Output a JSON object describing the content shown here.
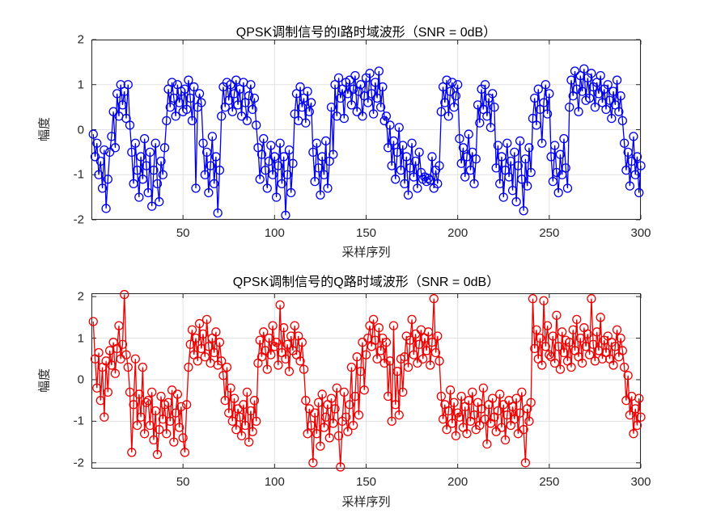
{
  "style": {
    "background": "#ffffff",
    "axis_color": "#262626",
    "grid_color": "#e2e2e2",
    "tick_label_color": "#262626",
    "title_color": "#000000"
  },
  "chart_data": [
    {
      "type": "line",
      "title": "QPSK调制信号的I路时域波形（SNR = 0dB）",
      "xlabel": "采样序列",
      "ylabel": "幅度",
      "line_color": "#0000ee",
      "marker": "circle",
      "grid": true,
      "x_start": 1,
      "xlim": [
        0,
        300
      ],
      "ylim": [
        -2,
        2
      ],
      "xticks": [
        50,
        100,
        150,
        200,
        250,
        300
      ],
      "yticks": [
        2,
        1,
        0,
        -1,
        -2
      ],
      "values": [
        -0.1,
        -0.6,
        -0.3,
        -1.0,
        -0.7,
        -1.3,
        -0.45,
        -1.75,
        -1.1,
        -0.5,
        -0.15,
        0.4,
        -0.4,
        0.8,
        0.3,
        1.0,
        0.55,
        0.85,
        0.25,
        1.0,
        0.1,
        -0.5,
        -1.2,
        -0.3,
        -0.9,
        -1.5,
        -0.6,
        -1.1,
        -0.2,
        -0.8,
        -1.4,
        -0.5,
        -1.7,
        -0.9,
        -0.3,
        -1.2,
        -1.6,
        -0.7,
        -1.0,
        -0.4,
        0.2,
        0.9,
        0.5,
        1.05,
        0.7,
        0.3,
        1.0,
        0.6,
        0.85,
        0.4,
        0.9,
        0.45,
        1.1,
        0.7,
        0.2,
        0.95,
        -1.3,
        0.5,
        0.8,
        0.6,
        -0.3,
        -1.0,
        -0.5,
        -1.4,
        -0.8,
        -0.15,
        -1.2,
        -0.6,
        -1.85,
        -0.9,
        0.3,
        0.95,
        0.5,
        1.05,
        0.65,
        1.0,
        0.4,
        0.8,
        1.1,
        0.55,
        0.9,
        0.3,
        1.05,
        0.6,
        0.2,
        0.75,
        1.0,
        0.45,
        0.7,
        0.1,
        -0.4,
        -1.1,
        -0.55,
        -0.2,
        -0.9,
        -1.3,
        -0.7,
        -0.35,
        -1.0,
        -0.6,
        -1.5,
        -0.8,
        -0.3,
        -1.2,
        -0.6,
        -1.9,
        -1.0,
        -0.45,
        -1.4,
        -0.75,
        0.35,
        0.8,
        0.2,
        0.95,
        0.5,
        0.7,
        0.15,
        0.85,
        0.4,
        0.6,
        -0.5,
        -1.15,
        -0.3,
        -0.85,
        -1.45,
        -0.6,
        -1.0,
        -0.25,
        -1.3,
        -0.7,
        0.5,
        -0.55,
        1.0,
        0.3,
        1.15,
        0.7,
        0.9,
        0.25,
        1.05,
        0.8,
        1.1,
        0.55,
        0.9,
        1.2,
        0.4,
        0.85,
        1.0,
        0.3,
        0.75,
        1.15,
        0.6,
        1.25,
        0.8,
        0.35,
        1.05,
        0.7,
        1.3,
        0.5,
        0.95,
        0.2,
        0.3,
        -0.4,
        0.1,
        -0.8,
        -0.25,
        -1.1,
        -0.5,
        0.05,
        -0.9,
        -0.35,
        -1.2,
        -0.6,
        -1.45,
        -0.85,
        -0.3,
        -1.05,
        -0.7,
        -1.3,
        -0.5,
        -0.95,
        -1.1,
        -1.05,
        -1.15,
        -1.08,
        -1.12,
        -0.6,
        -1.3,
        -0.9,
        -1.2,
        -0.8,
        0.4,
        0.95,
        0.6,
        1.1,
        0.3,
        0.85,
        1.05,
        0.5,
        0.75,
        1.0,
        -0.2,
        -0.75,
        -0.4,
        -1.05,
        -0.6,
        -0.1,
        -0.9,
        -0.5,
        -1.2,
        -0.65,
        0.55,
        0.15,
        0.9,
        0.45,
        1.0,
        0.3,
        0.7,
        0.05,
        0.8,
        0.5,
        -0.85,
        -0.35,
        -1.2,
        -0.6,
        -1.5,
        -0.9,
        -0.3,
        -1.05,
        -0.7,
        -1.35,
        -0.5,
        -1.6,
        -0.8,
        -0.25,
        -1.1,
        -1.8,
        -0.65,
        -1.25,
        -0.4,
        -0.95,
        0.25,
        0.7,
        0.1,
        0.9,
        0.45,
        -0.3,
        0.6,
        1.0,
        0.35,
        0.8,
        -0.6,
        -1.15,
        -0.35,
        -0.95,
        -1.4,
        -0.55,
        -1.0,
        -0.2,
        -0.85,
        -1.3,
        0.5,
        1.1,
        0.75,
        1.3,
        0.9,
        0.4,
        1.2,
        0.85,
        1.35,
        0.65,
        1.15,
        0.7,
        1.25,
        0.95,
        0.5,
        1.05,
        0.8,
        1.2,
        0.6,
        0.9,
        0.45,
        1.0,
        0.65,
        0.25,
        0.85,
        0.55,
        1.1,
        0.4,
        0.75,
        0.2,
        -0.3,
        -0.9,
        -0.5,
        -1.25,
        -0.7,
        -0.15,
        -1.0,
        -0.6,
        -1.4,
        -0.8
      ]
    },
    {
      "type": "line",
      "title": "QPSK调制信号的Q路时域波形（SNR = 0dB）",
      "xlabel": "采样序列",
      "ylabel": "幅度",
      "line_color": "#ee0000",
      "marker": "circle",
      "grid": true,
      "x_start": 1,
      "xlim": [
        0,
        300
      ],
      "ylim": [
        -2.14,
        2.08
      ],
      "xticks": [
        50,
        100,
        150,
        200,
        250,
        300
      ],
      "yticks": [
        2,
        1,
        0,
        -1,
        -2
      ],
      "values": [
        1.4,
        0.5,
        -0.2,
        0.65,
        -0.5,
        0.3,
        -0.9,
        0.45,
        -0.3,
        0.7,
        0.35,
        0.9,
        0.15,
        0.75,
        1.3,
        0.5,
        0.85,
        2.05,
        0.6,
        0.3,
        -0.3,
        -1.75,
        -0.6,
        0.5,
        -1.1,
        -0.35,
        -0.9,
        0.3,
        -1.3,
        -0.55,
        -0.5,
        -1.1,
        -0.3,
        -1.45,
        -0.75,
        -1.8,
        -1.2,
        -0.4,
        -0.95,
        -0.6,
        -1.3,
        -0.55,
        -1.0,
        -0.25,
        -1.5,
        -0.8,
        -0.35,
        -1.15,
        -0.65,
        -1.4,
        -1.75,
        -0.6,
        0.3,
        0.85,
        1.2,
        0.6,
        1.0,
        0.45,
        1.35,
        0.75,
        1.1,
        0.55,
        1.45,
        0.8,
        0.4,
        1.0,
        0.65,
        1.15,
        0.35,
        0.9,
        0.45,
        0.1,
        -0.5,
        0.3,
        -0.8,
        -0.2,
        -1.0,
        -0.45,
        -1.2,
        -0.7,
        -0.9,
        -1.35,
        -0.6,
        -1.1,
        -0.3,
        -1.5,
        -0.75,
        -1.25,
        -0.5,
        -1.0,
        0.4,
        0.95,
        0.55,
        1.15,
        0.7,
        0.25,
        1.0,
        0.6,
        1.3,
        0.8,
        0.9,
        0.35,
        1.8,
        0.65,
        1.25,
        0.5,
        0.85,
        0.2,
        1.05,
        0.7,
        1.3,
        0.6,
        1.05,
        0.45,
        0.9,
        0.25,
        -0.5,
        -1.3,
        -0.7,
        -1.1,
        -2.0,
        -0.8,
        -1.3,
        -0.55,
        -1.6,
        -0.35,
        -1.15,
        -0.9,
        -0.6,
        -1.4,
        -0.45,
        -1.05,
        -0.7,
        -0.2,
        -1.35,
        -2.1,
        -1.0,
        -0.3,
        -0.9,
        -1.25,
        -0.6,
        0.3,
        -1.1,
        -0.4,
        0.55,
        -0.85,
        0.2,
        0.9,
        -0.25,
        0.6,
        1.0,
        1.3,
        0.8,
        1.45,
        0.95,
        0.5,
        1.25,
        0.7,
        1.0,
        0.4,
        0.9,
        -0.4,
        0.45,
        -1.0,
        1.3,
        -0.6,
        0.2,
        -0.85,
        0.5,
        -0.3,
        0.55,
        1.05,
        0.3,
        0.95,
        1.45,
        0.6,
        1.1,
        0.4,
        0.85,
        1.2,
        0.5,
        1.0,
        0.7,
        1.15,
        0.35,
        0.9,
        1.95,
        0.65,
        1.05,
        0.45,
        -0.4,
        -0.95,
        -0.6,
        -1.2,
        -0.75,
        -0.25,
        -1.05,
        -0.55,
        -1.35,
        -0.8,
        -0.9,
        -0.4,
        -1.15,
        -0.65,
        -1.3,
        -0.5,
        -1.0,
        -0.3,
        -0.85,
        -1.2,
        -0.55,
        -1.1,
        -0.7,
        -0.2,
        -0.95,
        -1.55,
        -0.6,
        -1.05,
        -0.45,
        -0.9,
        -1.25,
        -0.75,
        -0.35,
        -1.15,
        -0.6,
        -1.45,
        -0.85,
        -0.5,
        -1.1,
        -0.65,
        -0.95,
        -0.45,
        -1.3,
        -0.8,
        -0.3,
        -1.2,
        -2.0,
        -0.7,
        -1.0,
        -0.55,
        1.95,
        0.75,
        1.2,
        0.5,
        1.0,
        0.35,
        1.9,
        0.8,
        1.3,
        0.6,
        0.55,
        1.05,
        0.4,
        1.55,
        0.8,
        0.25,
        1.15,
        0.65,
        0.95,
        0.45,
        0.9,
        0.3,
        1.2,
        0.7,
        1.45,
        0.55,
        1.0,
        0.4,
        1.25,
        0.8,
        1.1,
        0.6,
        1.95,
        0.85,
        0.45,
        1.15,
        0.7,
        1.5,
        0.5,
        0.95,
        0.65,
        1.05,
        0.5,
        0.9,
        0.35,
        0.8,
        1.2,
        0.55,
        1.0,
        0.7,
        0.3,
        -0.5,
        0.1,
        -0.85,
        -0.4,
        -1.3,
        -0.7,
        -1.1,
        -0.45,
        -0.9
      ]
    }
  ]
}
